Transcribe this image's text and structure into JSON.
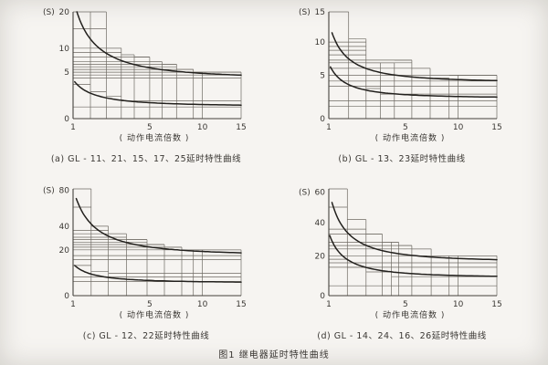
{
  "page": {
    "figure_caption": "图1  继电器延时特性曲线",
    "background": "#f6f4f1",
    "line_color": "#6e6a63",
    "curve_color": "#22201d"
  },
  "axis": {
    "y_unit": "(S)",
    "x_label": "( 动作电流倍数 )",
    "x_ticks": [
      1,
      5,
      10,
      15
    ],
    "x_range": [
      1,
      15
    ],
    "x_scale": "compressed (nonlinear)"
  },
  "chart_data": [
    {
      "id": "a",
      "type": "line",
      "caption": "(a) GL - 11、21、15、17、25延时特性曲线",
      "ylabel": "(S)",
      "xlabel": "动作电流倍数",
      "y_ticks": [
        0,
        5,
        10,
        20
      ],
      "y_exp": 0.6,
      "x_exp": 0.42,
      "upper_band": {
        "steps": [
          [
            1,
            2.3,
            20
          ],
          [
            2.3,
            3.1,
            10
          ],
          [
            3.1,
            3.9,
            8.5
          ],
          [
            3.9,
            5,
            8
          ],
          [
            5,
            6,
            7
          ],
          [
            6,
            7.3,
            6.5
          ],
          [
            7.3,
            9,
            5.5
          ],
          [
            9,
            15,
            5
          ]
        ],
        "levels": [
          4,
          4.5,
          5,
          5.5,
          6,
          6.5,
          7,
          8,
          9,
          10,
          15
        ]
      },
      "lower_band": {
        "steps": [
          [
            1,
            1.6,
            3
          ],
          [
            1.6,
            2.3,
            2
          ],
          [
            2.3,
            3.1,
            1.5
          ],
          [
            3.1,
            15,
            1
          ]
        ],
        "levels": [
          0.5
        ]
      },
      "extra_verticals": [
        1.6,
        10
      ],
      "curves": [
        {
          "x0": 1.12,
          "y0": 20,
          "asym": 3.9
        },
        {
          "x0": 1.05,
          "y0": 3.4,
          "asym": 0.55
        }
      ]
    },
    {
      "id": "b",
      "type": "line",
      "caption": "(b) GL - 13、23延时特性曲线",
      "ylabel": "(S)",
      "xlabel": "动作电流倍数",
      "y_ticks": [
        0,
        5,
        10,
        15
      ],
      "y_exp": 0.82,
      "x_exp": 0.42,
      "upper_band": {
        "steps": [
          [
            1,
            1.7,
            15
          ],
          [
            1.7,
            2.5,
            10.5
          ],
          [
            2.5,
            4.2,
            6.8
          ],
          [
            4.2,
            5.5,
            7.2
          ],
          [
            5.5,
            7.1,
            6
          ],
          [
            7.1,
            9,
            4.6
          ],
          [
            9,
            15,
            5
          ]
        ],
        "levels": [
          3.5,
          4.2,
          5,
          6,
          6.8,
          7.2,
          8,
          8.7,
          9.3,
          10
        ]
      },
      "lower_band": {
        "steps": [
          [
            1,
            1.7,
            6
          ],
          [
            1.7,
            2.5,
            4.2
          ],
          [
            2.5,
            3.3,
            3.2
          ],
          [
            3.3,
            15,
            2.5
          ]
        ],
        "levels": [
          1.1,
          1.7
        ]
      },
      "extra_verticals": [
        10
      ],
      "curves": [
        {
          "x0": 1.1,
          "y0": 11.5,
          "asym": 4.0
        },
        {
          "x0": 1.05,
          "y0": 6.2,
          "asym": 2.0
        }
      ]
    },
    {
      "id": "c",
      "type": "line",
      "caption": "(c) GL - 12、22延时特性曲线",
      "ylabel": "(S)",
      "xlabel": "动作电流倍数",
      "y_ticks": [
        0,
        20,
        40,
        80
      ],
      "y_exp": 0.6,
      "x_exp": 0.42,
      "upper_band": {
        "steps": [
          [
            1,
            1.63,
            82
          ],
          [
            1.63,
            2.4,
            40
          ],
          [
            2.4,
            3.4,
            33
          ],
          [
            3.4,
            4.8,
            28
          ],
          [
            4.8,
            6.2,
            24
          ],
          [
            6.2,
            7.8,
            22
          ],
          [
            7.8,
            15,
            20
          ]
        ],
        "levels": [
          13.5,
          16,
          20,
          22,
          24,
          26,
          28,
          30,
          33,
          36,
          60
        ]
      },
      "lower_band": {
        "steps": [
          [
            1,
            1.63,
            10
          ],
          [
            1.63,
            2.4,
            7
          ],
          [
            2.4,
            15,
            6
          ]
        ],
        "levels": [
          2.8,
          4.5
        ]
      },
      "extra_verticals": [
        9,
        10
      ],
      "curves": [
        {
          "x0": 1.1,
          "y0": 70,
          "asym": 16
        },
        {
          "x0": 1.05,
          "y0": 10,
          "asym": 2.4
        }
      ]
    },
    {
      "id": "d",
      "type": "line",
      "caption": "(d) GL - 14、24、16、26延时特性曲线",
      "ylabel": "(S)",
      "xlabel": "动作电流倍数",
      "y_ticks": [
        0,
        20,
        40,
        60
      ],
      "y_exp": 0.87,
      "x_exp": 0.42,
      "upper_band": {
        "steps": [
          [
            1,
            1.65,
            62
          ],
          [
            1.65,
            2.5,
            42
          ],
          [
            2.5,
            3.4,
            33
          ],
          [
            3.4,
            4.5,
            28
          ],
          [
            4.5,
            5.5,
            26
          ],
          [
            5.5,
            7.2,
            24
          ],
          [
            7.2,
            15,
            20
          ]
        ],
        "levels": [
          13.5,
          16,
          20,
          24,
          26,
          28,
          33,
          36,
          50
        ]
      },
      "lower_band": {
        "steps": [
          [
            1,
            1.65,
            18
          ],
          [
            1.65,
            2.5,
            13.5
          ],
          [
            2.5,
            4,
            11
          ],
          [
            4,
            15,
            8.5
          ]
        ],
        "levels": [
          4
        ]
      },
      "extra_verticals": [
        9,
        10
      ],
      "curves": [
        {
          "x0": 1.1,
          "y0": 53,
          "asym": 16.5
        },
        {
          "x0": 1.03,
          "y0": 32,
          "asym": 8
        }
      ]
    }
  ]
}
